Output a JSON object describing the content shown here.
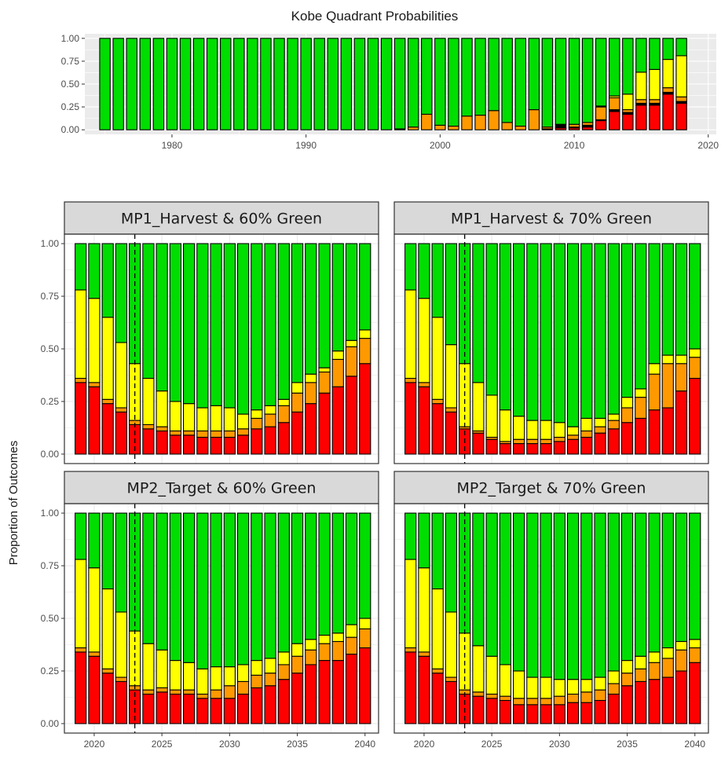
{
  "colors": {
    "red": "#ff0000",
    "orange": "#ff9900",
    "yellow": "#ffff00",
    "green": "#00dd00",
    "black": "#000000",
    "strip_bg": "#d9d9d9",
    "panel_bg": "#ffffff",
    "grid": "#ebebeb",
    "top_panel_bg": "#ebebeb"
  },
  "chart_data": [
    {
      "type": "bar",
      "stacked": true,
      "title": "Kobe Quadrant Probabilities",
      "xlabel": "",
      "ylabel": "",
      "x_ticks": [
        1980,
        1990,
        2000,
        2010,
        2020
      ],
      "y_ticks": [
        "0.00",
        "0.25",
        "0.50",
        "0.75",
        "1.00"
      ],
      "xlim": [
        1973.5,
        2020.6
      ],
      "ylim": [
        0,
        1
      ],
      "grid": true,
      "stack_order": [
        "red",
        "black",
        "orange",
        "yellow",
        "green"
      ],
      "x": [
        1975,
        1976,
        1977,
        1978,
        1979,
        1980,
        1981,
        1982,
        1983,
        1984,
        1985,
        1986,
        1987,
        1988,
        1989,
        1990,
        1991,
        1992,
        1993,
        1994,
        1995,
        1996,
        1997,
        1998,
        1999,
        2000,
        2001,
        2002,
        2003,
        2004,
        2005,
        2006,
        2007,
        2008,
        2009,
        2010,
        2011,
        2012,
        2013,
        2014,
        2015,
        2016,
        2017,
        2018
      ],
      "series": [
        {
          "color_key": "red",
          "values": [
            0,
            0,
            0,
            0,
            0,
            0,
            0,
            0,
            0,
            0,
            0,
            0,
            0,
            0,
            0,
            0,
            0,
            0,
            0,
            0,
            0,
            0,
            0,
            0,
            0,
            0,
            0,
            0,
            0,
            0,
            0,
            0,
            0,
            0,
            0.02,
            0.02,
            0.03,
            0.1,
            0.2,
            0.17,
            0.27,
            0.27,
            0.39,
            0.29
          ]
        },
        {
          "color_key": "black",
          "values": [
            0,
            0,
            0,
            0,
            0,
            0,
            0,
            0,
            0,
            0,
            0,
            0,
            0,
            0,
            0,
            0,
            0,
            0,
            0,
            0,
            0,
            0,
            0,
            0,
            0,
            0,
            0,
            0,
            0,
            0,
            0,
            0,
            0,
            0.01,
            0.04,
            0.01,
            0.02,
            0.01,
            0.02,
            0.02,
            0.02,
            0.02,
            0.02,
            0.02
          ]
        },
        {
          "color_key": "orange",
          "values": [
            0,
            0,
            0,
            0,
            0,
            0,
            0,
            0,
            0,
            0,
            0,
            0,
            0,
            0,
            0,
            0,
            0,
            0,
            0,
            0,
            0,
            0,
            0.01,
            0.03,
            0.17,
            0.05,
            0.04,
            0.15,
            0.16,
            0.21,
            0.08,
            0.04,
            0.22,
            0.02,
            0,
            0.03,
            0.03,
            0.14,
            0.13,
            0.03,
            0.04,
            0.04,
            0.05,
            0.05
          ]
        },
        {
          "color_key": "yellow",
          "values": [
            0,
            0,
            0,
            0,
            0,
            0,
            0,
            0,
            0,
            0,
            0,
            0,
            0,
            0,
            0,
            0,
            0,
            0,
            0,
            0,
            0,
            0,
            0,
            0,
            0,
            0,
            0,
            0,
            0,
            0,
            0,
            0,
            0,
            0,
            0,
            0,
            0,
            0.01,
            0.02,
            0.17,
            0.3,
            0.33,
            0.31,
            0.45
          ]
        },
        {
          "color_key": "green",
          "values": [
            1,
            1,
            1,
            1,
            1,
            1,
            1,
            1,
            1,
            1,
            1,
            1,
            1,
            1,
            1,
            1,
            1,
            1,
            1,
            1,
            1,
            1,
            0.99,
            0.97,
            0.83,
            0.95,
            0.96,
            0.85,
            0.84,
            0.79,
            0.92,
            0.96,
            0.78,
            0.97,
            0.94,
            0.94,
            0.92,
            0.74,
            0.63,
            0.61,
            0.37,
            0.34,
            0.23,
            0.19
          ]
        }
      ]
    },
    {
      "type": "bar",
      "stacked": true,
      "title": "MP1_Harvest & 60% Green",
      "xlabel": "",
      "ylabel": "Proportion of Outcomes",
      "x_ticks": [
        2020,
        2025,
        2030,
        2035,
        2040
      ],
      "y_ticks": [
        "0.00",
        "0.25",
        "0.50",
        "0.75",
        "1.00"
      ],
      "xlim": [
        2017.8,
        2041.0
      ],
      "ylim": [
        0,
        1
      ],
      "vline": 2023,
      "stack_order": [
        "red",
        "black",
        "orange",
        "yellow",
        "green"
      ],
      "x": [
        2019,
        2020,
        2021,
        2022,
        2023,
        2024,
        2025,
        2026,
        2027,
        2028,
        2029,
        2030,
        2031,
        2032,
        2033,
        2034,
        2035,
        2036,
        2037,
        2038,
        2039,
        2040
      ],
      "series": [
        {
          "color_key": "red",
          "values": [
            0.34,
            0.32,
            0.24,
            0.2,
            0.14,
            0.12,
            0.11,
            0.09,
            0.09,
            0.08,
            0.08,
            0.08,
            0.09,
            0.12,
            0.13,
            0.15,
            0.2,
            0.24,
            0.29,
            0.32,
            0.37,
            0.43
          ]
        },
        {
          "color_key": "black",
          "values": [
            0,
            0,
            0,
            0,
            0,
            0,
            0,
            0,
            0,
            0,
            0,
            0,
            0,
            0,
            0,
            0,
            0,
            0,
            0,
            0,
            0,
            0
          ]
        },
        {
          "color_key": "orange",
          "values": [
            0.02,
            0.02,
            0.02,
            0.02,
            0.02,
            0.02,
            0.02,
            0.02,
            0.02,
            0.03,
            0.03,
            0.03,
            0.03,
            0.05,
            0.06,
            0.08,
            0.09,
            0.1,
            0.1,
            0.13,
            0.14,
            0.12
          ]
        },
        {
          "color_key": "yellow",
          "values": [
            0.42,
            0.4,
            0.39,
            0.31,
            0.27,
            0.22,
            0.17,
            0.14,
            0.13,
            0.11,
            0.12,
            0.11,
            0.07,
            0.04,
            0.04,
            0.03,
            0.05,
            0.04,
            0.02,
            0.04,
            0.03,
            0.04
          ]
        },
        {
          "color_key": "green",
          "values": [
            0.22,
            0.26,
            0.35,
            0.47,
            0.57,
            0.64,
            0.7,
            0.75,
            0.76,
            0.78,
            0.77,
            0.78,
            0.81,
            0.79,
            0.77,
            0.74,
            0.66,
            0.62,
            0.59,
            0.51,
            0.46,
            0.41
          ]
        }
      ]
    },
    {
      "type": "bar",
      "stacked": true,
      "title": "MP1_Harvest & 70% Green",
      "xlabel": "",
      "ylabel": "",
      "x_ticks": [
        2020,
        2025,
        2030,
        2035,
        2040
      ],
      "y_ticks": [
        "0.00",
        "0.25",
        "0.50",
        "0.75",
        "1.00"
      ],
      "xlim": [
        2017.8,
        2041.0
      ],
      "ylim": [
        0,
        1
      ],
      "vline": 2023,
      "stack_order": [
        "red",
        "black",
        "orange",
        "yellow",
        "green"
      ],
      "x": [
        2019,
        2020,
        2021,
        2022,
        2023,
        2024,
        2025,
        2026,
        2027,
        2028,
        2029,
        2030,
        2031,
        2032,
        2033,
        2034,
        2035,
        2036,
        2037,
        2038,
        2039,
        2040
      ],
      "series": [
        {
          "color_key": "red",
          "values": [
            0.34,
            0.32,
            0.24,
            0.2,
            0.12,
            0.1,
            0.07,
            0.05,
            0.05,
            0.05,
            0.05,
            0.06,
            0.07,
            0.08,
            0.1,
            0.12,
            0.15,
            0.17,
            0.21,
            0.22,
            0.3,
            0.36
          ]
        },
        {
          "color_key": "black",
          "values": [
            0,
            0,
            0,
            0,
            0,
            0,
            0,
            0,
            0,
            0,
            0,
            0,
            0,
            0,
            0,
            0,
            0,
            0,
            0,
            0,
            0,
            0
          ]
        },
        {
          "color_key": "orange",
          "values": [
            0.02,
            0.02,
            0.02,
            0.02,
            0.01,
            0.01,
            0.01,
            0.01,
            0.02,
            0.02,
            0.02,
            0.02,
            0.02,
            0.03,
            0.03,
            0.04,
            0.07,
            0.1,
            0.17,
            0.21,
            0.13,
            0.1
          ]
        },
        {
          "color_key": "yellow",
          "values": [
            0.42,
            0.4,
            0.39,
            0.3,
            0.3,
            0.23,
            0.2,
            0.15,
            0.11,
            0.09,
            0.09,
            0.07,
            0.04,
            0.06,
            0.04,
            0.03,
            0.05,
            0.04,
            0.05,
            0.04,
            0.04,
            0.04
          ]
        },
        {
          "color_key": "green",
          "values": [
            0.22,
            0.26,
            0.35,
            0.48,
            0.57,
            0.66,
            0.72,
            0.79,
            0.82,
            0.84,
            0.84,
            0.85,
            0.87,
            0.83,
            0.83,
            0.81,
            0.73,
            0.69,
            0.57,
            0.53,
            0.53,
            0.5
          ]
        }
      ]
    },
    {
      "type": "bar",
      "stacked": true,
      "title": "MP2_Target & 60% Green",
      "xlabel": "",
      "ylabel": "",
      "x_ticks": [
        2020,
        2025,
        2030,
        2035,
        2040
      ],
      "y_ticks": [
        "0.00",
        "0.25",
        "0.50",
        "0.75",
        "1.00"
      ],
      "xlim": [
        2017.8,
        2041.0
      ],
      "ylim": [
        0,
        1
      ],
      "vline": 2023,
      "stack_order": [
        "red",
        "black",
        "orange",
        "yellow",
        "green"
      ],
      "x": [
        2019,
        2020,
        2021,
        2022,
        2023,
        2024,
        2025,
        2026,
        2027,
        2028,
        2029,
        2030,
        2031,
        2032,
        2033,
        2034,
        2035,
        2036,
        2037,
        2038,
        2039,
        2040
      ],
      "series": [
        {
          "color_key": "red",
          "values": [
            0.34,
            0.32,
            0.24,
            0.2,
            0.16,
            0.14,
            0.15,
            0.14,
            0.14,
            0.12,
            0.12,
            0.12,
            0.14,
            0.17,
            0.18,
            0.21,
            0.24,
            0.28,
            0.3,
            0.3,
            0.33,
            0.36
          ]
        },
        {
          "color_key": "black",
          "values": [
            0,
            0,
            0,
            0,
            0,
            0,
            0,
            0,
            0,
            0,
            0,
            0,
            0,
            0,
            0,
            0,
            0,
            0,
            0,
            0,
            0,
            0
          ]
        },
        {
          "color_key": "orange",
          "values": [
            0.02,
            0.02,
            0.02,
            0.02,
            0.02,
            0.02,
            0.02,
            0.02,
            0.02,
            0.02,
            0.04,
            0.06,
            0.06,
            0.06,
            0.06,
            0.07,
            0.08,
            0.07,
            0.08,
            0.09,
            0.08,
            0.09
          ]
        },
        {
          "color_key": "yellow",
          "values": [
            0.42,
            0.4,
            0.38,
            0.31,
            0.26,
            0.22,
            0.18,
            0.14,
            0.13,
            0.12,
            0.11,
            0.09,
            0.08,
            0.07,
            0.07,
            0.06,
            0.06,
            0.05,
            0.04,
            0.04,
            0.06,
            0.05
          ]
        },
        {
          "color_key": "green",
          "values": [
            0.22,
            0.26,
            0.36,
            0.47,
            0.56,
            0.62,
            0.65,
            0.7,
            0.71,
            0.74,
            0.73,
            0.73,
            0.72,
            0.7,
            0.69,
            0.66,
            0.62,
            0.6,
            0.58,
            0.57,
            0.53,
            0.5
          ]
        }
      ]
    },
    {
      "type": "bar",
      "stacked": true,
      "title": "MP2_Target & 70% Green",
      "xlabel": "",
      "ylabel": "",
      "x_ticks": [
        2020,
        2025,
        2030,
        2035,
        2040
      ],
      "y_ticks": [
        "0.00",
        "0.25",
        "0.50",
        "0.75",
        "1.00"
      ],
      "xlim": [
        2017.8,
        2041.0
      ],
      "ylim": [
        0,
        1
      ],
      "vline": 2023,
      "stack_order": [
        "red",
        "black",
        "orange",
        "yellow",
        "green"
      ],
      "x": [
        2019,
        2020,
        2021,
        2022,
        2023,
        2024,
        2025,
        2026,
        2027,
        2028,
        2029,
        2030,
        2031,
        2032,
        2033,
        2034,
        2035,
        2036,
        2037,
        2038,
        2039,
        2040
      ],
      "series": [
        {
          "color_key": "red",
          "values": [
            0.34,
            0.32,
            0.24,
            0.2,
            0.14,
            0.13,
            0.12,
            0.11,
            0.09,
            0.09,
            0.09,
            0.09,
            0.1,
            0.1,
            0.11,
            0.14,
            0.18,
            0.2,
            0.21,
            0.22,
            0.25,
            0.29
          ]
        },
        {
          "color_key": "black",
          "values": [
            0,
            0,
            0,
            0,
            0,
            0,
            0,
            0,
            0,
            0,
            0,
            0,
            0,
            0,
            0,
            0,
            0,
            0,
            0,
            0,
            0,
            0
          ]
        },
        {
          "color_key": "orange",
          "values": [
            0.02,
            0.02,
            0.02,
            0.02,
            0.02,
            0.02,
            0.02,
            0.02,
            0.03,
            0.03,
            0.03,
            0.04,
            0.04,
            0.05,
            0.05,
            0.05,
            0.06,
            0.06,
            0.08,
            0.09,
            0.1,
            0.07
          ]
        },
        {
          "color_key": "yellow",
          "values": [
            0.42,
            0.4,
            0.38,
            0.31,
            0.27,
            0.22,
            0.18,
            0.15,
            0.13,
            0.1,
            0.1,
            0.08,
            0.07,
            0.06,
            0.06,
            0.06,
            0.06,
            0.06,
            0.05,
            0.05,
            0.04,
            0.04
          ]
        },
        {
          "color_key": "green",
          "values": [
            0.22,
            0.26,
            0.36,
            0.47,
            0.57,
            0.63,
            0.68,
            0.72,
            0.75,
            0.78,
            0.78,
            0.79,
            0.79,
            0.79,
            0.78,
            0.75,
            0.7,
            0.68,
            0.66,
            0.64,
            0.61,
            0.6
          ]
        }
      ]
    }
  ]
}
